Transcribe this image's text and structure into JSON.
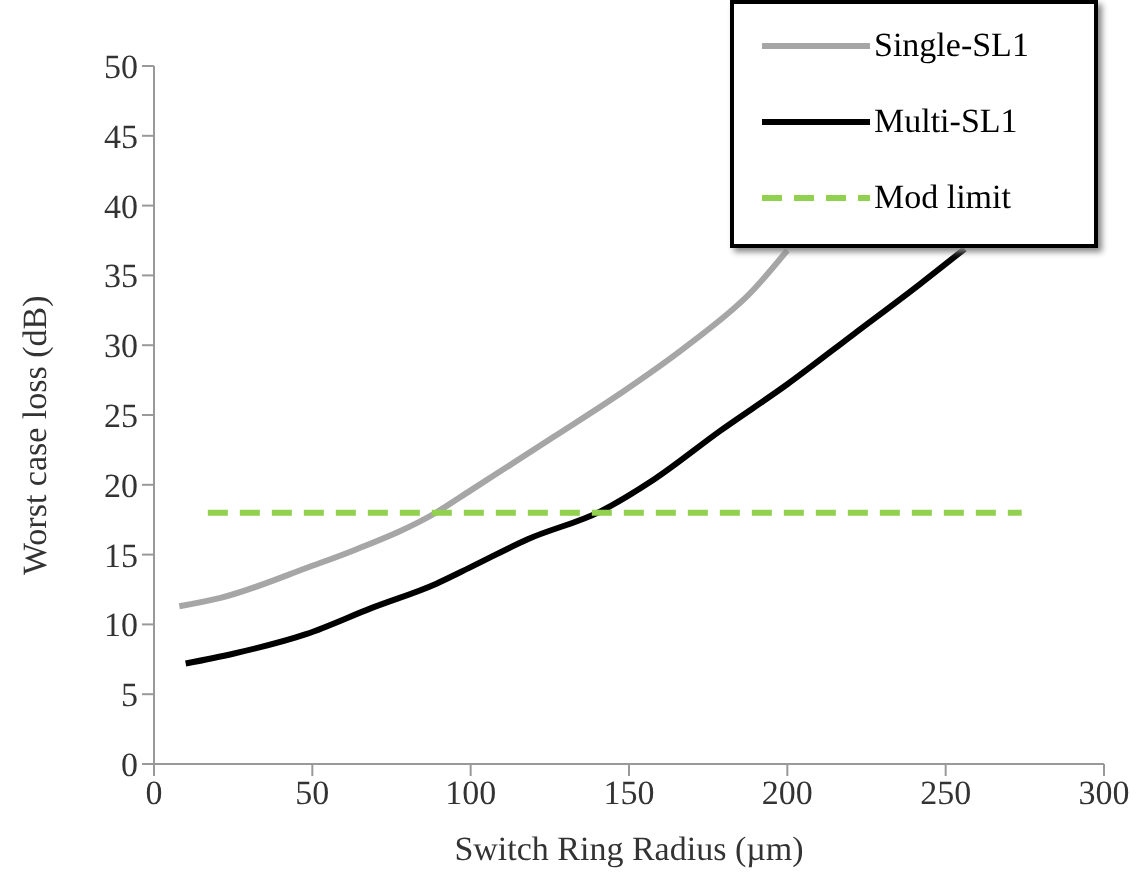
{
  "chart_data": {
    "type": "line",
    "xlabel": "Switch Ring Radius (µm)",
    "ylabel": "Worst case loss (dB)",
    "xlim": [
      0,
      300
    ],
    "xticks": [
      0,
      50,
      100,
      150,
      200,
      250,
      300
    ],
    "ylim": [
      0,
      50
    ],
    "yticks": [
      0,
      5,
      10,
      15,
      20,
      25,
      30,
      35,
      40,
      45,
      50
    ],
    "legend": "top right",
    "marker": "none",
    "series": [
      {
        "name": "Single-SL1",
        "color": "#a6a6a6",
        "line_style": "solid",
        "x": [
          8,
          21,
          50,
          63,
          89,
          100,
          126,
          147,
          168,
          189,
          200
        ],
        "values": [
          11.3,
          11.9,
          14.2,
          15.3,
          18,
          19.6,
          23.4,
          26.5,
          29.9,
          33.9,
          36.8
        ]
      },
      {
        "name": "Multi-SL1",
        "color": "#000000",
        "line_style": "solid",
        "x": [
          10,
          25,
          48,
          69,
          89,
          100,
          118,
          141,
          158,
          179,
          200,
          221,
          242,
          256
        ],
        "values": [
          7.2,
          7.9,
          9.3,
          11.2,
          12.9,
          14.1,
          16.1,
          18.1,
          20.4,
          23.9,
          27.2,
          30.8,
          34.4,
          36.9
        ]
      },
      {
        "name": "Mod limit",
        "color": "#92d050",
        "line_style": "dashed",
        "x": [
          17,
          274
        ],
        "values": [
          18,
          18
        ]
      }
    ]
  }
}
